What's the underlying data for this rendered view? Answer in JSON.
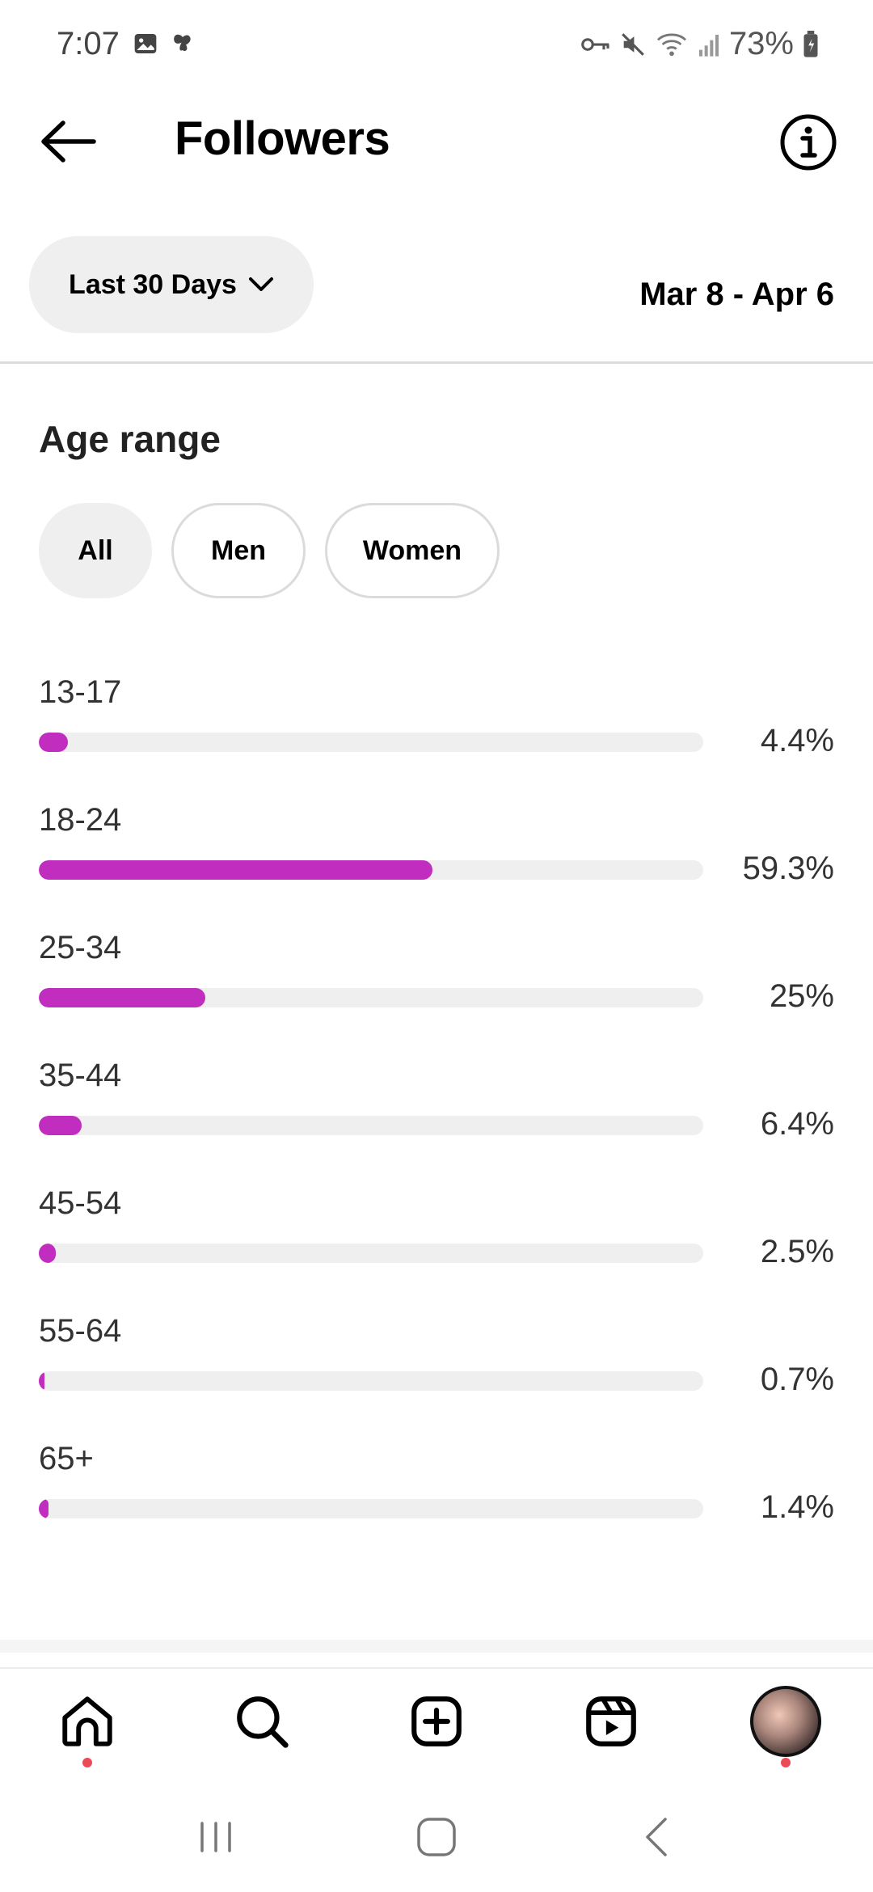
{
  "status_bar": {
    "time": "7:07",
    "battery": "73%",
    "icons": [
      "image-icon",
      "butterfly-icon",
      "vpn-key-icon",
      "mute-icon",
      "wifi-icon",
      "signal-icon",
      "battery-icon"
    ]
  },
  "header": {
    "title": "Followers",
    "back_icon": "arrow-left-icon",
    "info_icon": "info-icon"
  },
  "filters": {
    "range_label": "Last 30 Days",
    "date_range": "Mar 8 - Apr 6"
  },
  "section": {
    "title": "Age range",
    "segments": [
      {
        "label": "All",
        "active": true
      },
      {
        "label": "Men",
        "active": false
      },
      {
        "label": "Women",
        "active": false
      }
    ]
  },
  "chart_data": {
    "type": "bar",
    "orientation": "horizontal",
    "categories": [
      "13-17",
      "18-24",
      "25-34",
      "35-44",
      "45-54",
      "55-64",
      "65+"
    ],
    "values": [
      4.4,
      59.3,
      25,
      6.4,
      2.5,
      0.7,
      1.4
    ],
    "value_labels": [
      "4.4%",
      "59.3%",
      "25%",
      "6.4%",
      "2.5%",
      "0.7%",
      "1.4%"
    ],
    "xlim": [
      0,
      100
    ],
    "bar_color": "#c02dbf",
    "track_color": "#efefef"
  },
  "bottom_nav": {
    "items": [
      "home-icon",
      "search-icon",
      "create-icon",
      "reels-icon",
      "profile-avatar"
    ]
  },
  "colors": {
    "accent": "#c02dbf",
    "notification_dot": "#ed4956"
  }
}
